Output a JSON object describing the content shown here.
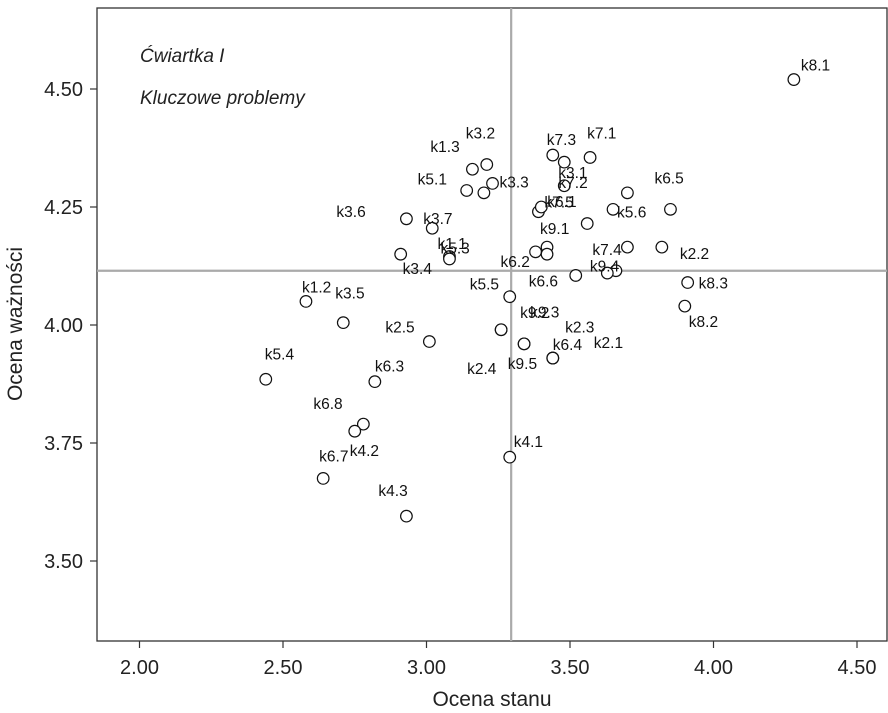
{
  "chart_data": {
    "type": "scatter",
    "title": "",
    "xlabel": "Ocena stanu",
    "ylabel": "Ocena ważności",
    "xlim": [
      1.86,
      4.6
    ],
    "ylim": [
      3.335,
      4.665
    ],
    "xticks": [
      2.0,
      2.5,
      3.0,
      3.5,
      4.0,
      4.5
    ],
    "xtick_labels": [
      "2.00",
      "2.50",
      "3.00",
      "3.50",
      "4.00",
      "4.50"
    ],
    "yticks": [
      3.5,
      3.75,
      4.0,
      4.25,
      4.5
    ],
    "ytick_labels": [
      "3.50",
      "3.75",
      "4.00",
      "4.25",
      "4.50"
    ],
    "reference_lines": {
      "x": 3.295,
      "y": 4.115
    },
    "grid": false,
    "quadrant_labels": [
      "Ćwiartka I",
      "Kluczowe problemy"
    ],
    "points": [
      {
        "label": "k8.1",
        "x": 4.28,
        "y": 4.52
      },
      {
        "label": "k1.3",
        "x": 3.16,
        "y": 4.33
      },
      {
        "label": "k3.2",
        "x": 3.21,
        "y": 4.34
      },
      {
        "label": "k7.3",
        "x": 3.44,
        "y": 4.36
      },
      {
        "label": "",
        "x": 3.48,
        "y": 4.345
      },
      {
        "label": "k7.1",
        "x": 3.57,
        "y": 4.355
      },
      {
        "label": "k5.1",
        "x": 3.14,
        "y": 4.285
      },
      {
        "label": "k3.3",
        "x": 3.23,
        "y": 4.3
      },
      {
        "label": "",
        "x": 3.2,
        "y": 4.28
      },
      {
        "label": "k3.1",
        "x": 3.48,
        "y": 4.295
      },
      {
        "label": "k7.2",
        "x": 3.7,
        "y": 4.28
      },
      {
        "label": "k6.5",
        "x": 3.85,
        "y": 4.245
      },
      {
        "label": "k3.6",
        "x": 2.93,
        "y": 4.225
      },
      {
        "label": "k3.7",
        "x": 3.02,
        "y": 4.205
      },
      {
        "label": "k5.3",
        "x": 3.08,
        "y": 4.145
      },
      {
        "label": "k7.5",
        "x": 3.39,
        "y": 4.24
      },
      {
        "label": "k6.1",
        "x": 3.4,
        "y": 4.25
      },
      {
        "label": "k5.6",
        "x": 3.65,
        "y": 4.245
      },
      {
        "label": "",
        "x": 3.56,
        "y": 4.215
      },
      {
        "label": "k2.2",
        "x": 3.82,
        "y": 4.165
      },
      {
        "label": "k1.1",
        "x": 3.08,
        "y": 4.14
      },
      {
        "label": "k3.4",
        "x": 2.91,
        "y": 4.15
      },
      {
        "label": "k9.1",
        "x": 3.42,
        "y": 4.165
      },
      {
        "label": "k6.2",
        "x": 3.38,
        "y": 4.155
      },
      {
        "label": "",
        "x": 3.42,
        "y": 4.15
      },
      {
        "label": "k7.4",
        "x": 3.7,
        "y": 4.165
      },
      {
        "label": "k9.4",
        "x": 3.66,
        "y": 4.115
      },
      {
        "label": "",
        "x": 3.63,
        "y": 4.11
      },
      {
        "label": "k6.6",
        "x": 3.52,
        "y": 4.105
      },
      {
        "label": "k8.3",
        "x": 3.91,
        "y": 4.09
      },
      {
        "label": "k1.2",
        "x": 2.58,
        "y": 4.05
      },
      {
        "label": "k3.5",
        "x": 2.71,
        "y": 4.005
      },
      {
        "label": "k5.5",
        "x": 3.29,
        "y": 4.06
      },
      {
        "label": "k9.3",
        "x": 3.26,
        "y": 3.99
      },
      {
        "label": "k2.3",
        "x": 3.26,
        "y": 3.99
      },
      {
        "label": "k8.2",
        "x": 3.9,
        "y": 4.04
      },
      {
        "label": "k2.5",
        "x": 3.01,
        "y": 3.965
      },
      {
        "label": "k9.2",
        "x": 3.34,
        "y": 3.96
      },
      {
        "label": "k2.1",
        "x": 3.44,
        "y": 3.93
      },
      {
        "label": "k2.4",
        "x": 3.34,
        "y": 3.96
      },
      {
        "label": "k6.4",
        "x": 3.44,
        "y": 3.93
      },
      {
        "label": "k9.5",
        "x": 3.44,
        "y": 3.93
      },
      {
        "label": "k5.4",
        "x": 2.44,
        "y": 3.885
      },
      {
        "label": "k6.3",
        "x": 2.82,
        "y": 3.88
      },
      {
        "label": "k6.8",
        "x": 2.78,
        "y": 3.79
      },
      {
        "label": "k4.2",
        "x": 2.75,
        "y": 3.775
      },
      {
        "label": "k4.1",
        "x": 3.29,
        "y": 3.72
      },
      {
        "label": "k6.7",
        "x": 2.64,
        "y": 3.675
      },
      {
        "label": "k4.3",
        "x": 2.93,
        "y": 3.595
      }
    ]
  }
}
